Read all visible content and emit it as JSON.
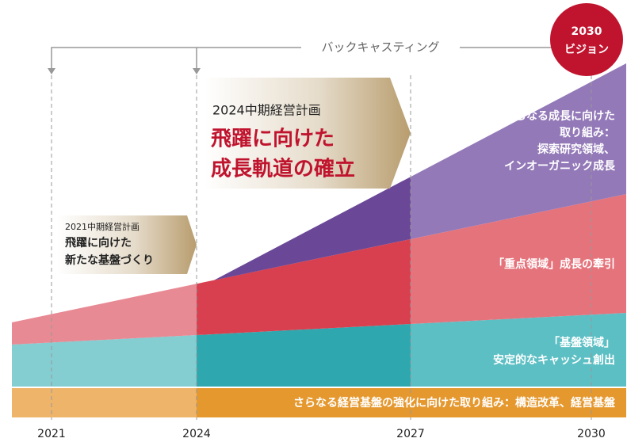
{
  "backcasting": "バックキャスティング",
  "vision": {
    "year": "2030",
    "label": "ビジョン"
  },
  "plan_2024": {
    "title": "2024中期経営計画",
    "headline_1": "飛躍に向けた",
    "headline_2": "成長軌道の確立"
  },
  "plan_2021": {
    "title": "2021中期経営計画",
    "headline_1": "飛躍に向けた",
    "headline_2": "新たな基盤づくり"
  },
  "layers": {
    "growth": [
      "さらなる成長に向けた",
      "取り組み：",
      "探索研究領域、",
      "インオーガニック成長"
    ],
    "focus": "「重点領域」成長の牽引",
    "base": [
      "「基盤領域」",
      "安定的なキャッシュ創出"
    ],
    "foundation": "さらなる経営基盤の強化に向けた取り組み：構造改革、経営基盤"
  },
  "years": [
    "2021",
    "2024",
    "2027",
    "2030"
  ]
}
